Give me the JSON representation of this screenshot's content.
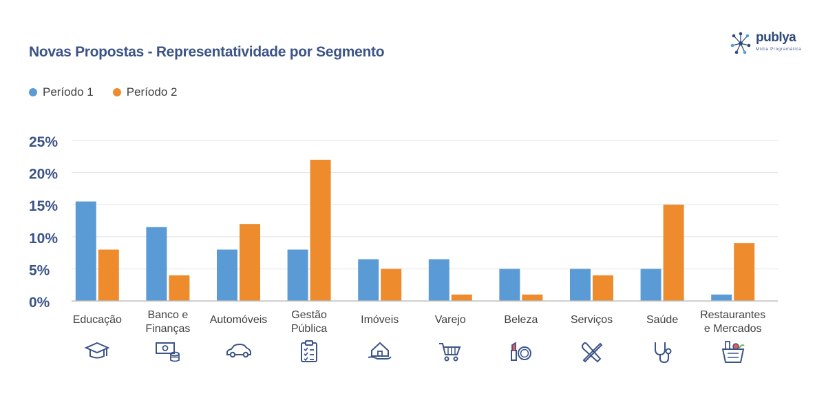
{
  "title": "Novas Propostas - Representatividade por Segmento",
  "logo": {
    "name": "publya",
    "subtitle": "Mídia Programática"
  },
  "colors": {
    "periodo1": "#5b9bd5",
    "periodo2": "#ed8b2d",
    "title": "#3b5486",
    "icon": "#3b5486"
  },
  "legend": [
    {
      "label": "Período 1",
      "color": "#5b9bd5"
    },
    {
      "label": "Período 2",
      "color": "#ed8b2d"
    }
  ],
  "chart_data": {
    "type": "bar",
    "title": "Novas Propostas - Representatividade por Segmento",
    "categories": [
      "Educação",
      "Banco e\nFinanças",
      "Automóveis",
      "Gestão\nPública",
      "Imóveis",
      "Varejo",
      "Beleza",
      "Serviços",
      "Saúde",
      "Restaurantes\ne Mercados"
    ],
    "series": [
      {
        "name": "Período 1",
        "values": [
          15.5,
          11.5,
          8,
          8,
          6.5,
          6.5,
          5,
          5,
          5,
          1
        ]
      },
      {
        "name": "Período 2",
        "values": [
          8,
          4,
          12,
          22,
          5,
          1,
          1,
          4,
          15,
          9
        ]
      }
    ],
    "y_ticks": [
      "0%",
      "5%",
      "10%",
      "15%",
      "20%",
      "25%"
    ],
    "ylim": [
      0,
      25
    ],
    "grid": true,
    "legend_position": "top-left",
    "icons": [
      "graduation-cap-icon",
      "money-coins-icon",
      "car-icon",
      "clipboard-checklist-icon",
      "house-hand-icon",
      "shopping-cart-icon",
      "lipstick-compact-icon",
      "wrench-screwdriver-icon",
      "stethoscope-icon",
      "grocery-bag-icon"
    ]
  }
}
